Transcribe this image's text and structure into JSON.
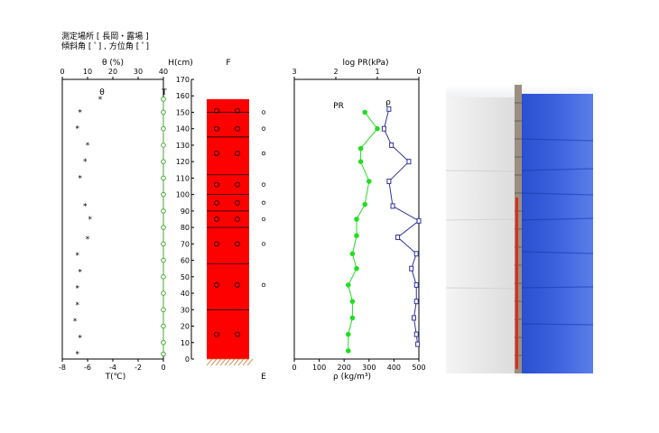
{
  "header": {
    "line1": "測定場所 [ 長岡・露場 ]",
    "line2": "傾斜角 [ ﾟ] , 方位角 [ ﾟ]"
  },
  "labels": {
    "theta_top": "θ (%)",
    "t_bottom": "T(℃)",
    "h_label": "H(cm)",
    "f_label": "F",
    "e_label": "E",
    "pr_top": "log PR(kPa)",
    "rho_bottom": "ρ (kg/m³)",
    "theta_series": "θ",
    "t_series": "T",
    "pr_series": "PR",
    "rho_series": "ρ"
  },
  "chart_data": [
    {
      "type": "scatter",
      "name": "moisture-temperature",
      "x_top_axis": {
        "label": "θ (%)",
        "range": [
          0,
          40
        ],
        "ticks": [
          0,
          10,
          20,
          30,
          40
        ]
      },
      "x_bottom_axis": {
        "label": "T(℃)",
        "range": [
          -8,
          0
        ],
        "ticks": [
          -8,
          -6,
          -4,
          -2,
          0
        ]
      },
      "y_axis": {
        "label": "H(cm)",
        "range": [
          0,
          170
        ],
        "ticks": [
          0,
          10,
          20,
          30,
          40,
          50,
          60,
          70,
          80,
          90,
          100,
          110,
          120,
          130,
          140,
          150,
          160,
          170
        ]
      },
      "series": [
        {
          "name": "θ",
          "marker": "asterisk",
          "axis": "top",
          "points": [
            [
              15,
              158
            ],
            [
              7,
              150
            ],
            [
              6,
              140
            ],
            [
              10,
              130
            ],
            [
              9,
              120
            ],
            [
              7,
              110
            ],
            [
              9,
              93
            ],
            [
              11,
              85
            ],
            [
              10,
              73
            ],
            [
              6,
              63
            ],
            [
              7,
              53
            ],
            [
              6,
              43
            ],
            [
              6,
              33
            ],
            [
              5,
              23
            ],
            [
              7,
              13
            ],
            [
              6,
              3
            ]
          ]
        },
        {
          "name": "T",
          "marker": "open-circle",
          "color": "#44aa33",
          "axis": "bottom",
          "points": [
            [
              0,
              158
            ],
            [
              0,
              150
            ],
            [
              0,
              140
            ],
            [
              0,
              130
            ],
            [
              0,
              120
            ],
            [
              0,
              110
            ],
            [
              0,
              100
            ],
            [
              0,
              90
            ],
            [
              0,
              80
            ],
            [
              0,
              70
            ],
            [
              0,
              60
            ],
            [
              0,
              50
            ],
            [
              0,
              40
            ],
            [
              0,
              30
            ],
            [
              0,
              20
            ],
            [
              0,
              10
            ],
            [
              0,
              3
            ]
          ]
        }
      ]
    },
    {
      "type": "table",
      "name": "snow-stratigraphy",
      "height_range": [
        0,
        170
      ],
      "layer_color": "#ff0000",
      "top": 158,
      "layer_boundaries": [
        150,
        135,
        112,
        100,
        90,
        80,
        58,
        30
      ],
      "grain_symbols": [
        151,
        140,
        125,
        106,
        95,
        85,
        70,
        45,
        15
      ],
      "side_symbols": [
        150,
        140,
        125,
        106,
        95,
        85,
        70,
        45
      ]
    },
    {
      "type": "line",
      "name": "resistance-density",
      "x_top_axis": {
        "label": "log PR(kPa)",
        "range": [
          0,
          3
        ],
        "reversed": true,
        "ticks": [
          1,
          2,
          3,
          0
        ]
      },
      "x_bottom_axis": {
        "label": "ρ (kg/m³)",
        "range": [
          0,
          500
        ],
        "ticks": [
          0,
          100,
          200,
          300,
          400,
          500
        ]
      },
      "y_range": [
        0,
        170
      ],
      "series": [
        {
          "name": "PR",
          "marker": "filled-circle",
          "color": "#22dd22",
          "axis": "top",
          "points": [
            [
              1.3,
              150
            ],
            [
              1.0,
              140
            ],
            [
              1.4,
              128
            ],
            [
              1.4,
              120
            ],
            [
              1.2,
              108
            ],
            [
              1.3,
              94
            ],
            [
              1.5,
              85
            ],
            [
              1.5,
              75
            ],
            [
              1.6,
              64
            ],
            [
              1.5,
              55
            ],
            [
              1.7,
              45
            ],
            [
              1.6,
              35
            ],
            [
              1.6,
              25
            ],
            [
              1.7,
              15
            ],
            [
              1.7,
              5
            ]
          ]
        },
        {
          "name": "ρ",
          "marker": "open-square",
          "color": "#333399",
          "axis": "bottom",
          "points": [
            [
              380,
              152
            ],
            [
              360,
              140
            ],
            [
              390,
              130
            ],
            [
              460,
              120
            ],
            [
              380,
              108
            ],
            [
              395,
              93
            ],
            [
              500,
              84
            ],
            [
              415,
              74
            ],
            [
              490,
              64
            ],
            [
              470,
              55
            ],
            [
              490,
              45
            ],
            [
              490,
              35
            ],
            [
              480,
              25
            ],
            [
              490,
              15
            ],
            [
              495,
              9
            ]
          ]
        }
      ]
    }
  ],
  "photo": {
    "name": "snow-pit-photo"
  }
}
